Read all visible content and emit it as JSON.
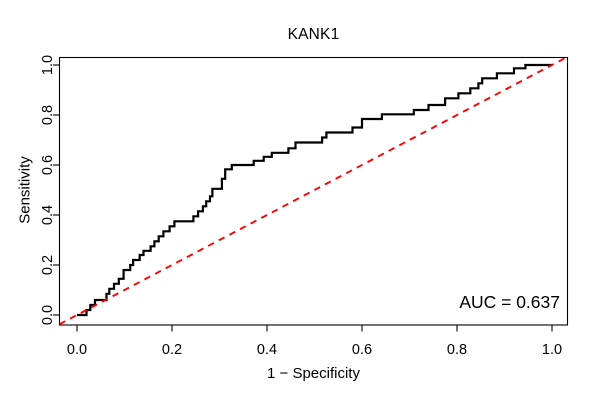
{
  "chart_data": {
    "type": "line",
    "subtype": "roc-step-curve",
    "title": "KANK1",
    "xlabel": "1 − Specificity",
    "ylabel": "Sensitivity",
    "annotation": "AUC = 0.637",
    "auc_value": 0.637,
    "xlim": [
      -0.04,
      1.04
    ],
    "ylim": [
      -0.04,
      1.04
    ],
    "x_ticks": [
      0.0,
      0.2,
      0.4,
      0.6,
      0.8,
      1.0
    ],
    "y_ticks": [
      0.0,
      0.2,
      0.4,
      0.6,
      0.8,
      1.0
    ],
    "grid": false,
    "legend_position": "none",
    "colors": {
      "roc_curve": "#000000",
      "diagonal": "#fe0000",
      "box": "#000000",
      "text": "#000000",
      "background": "#ffffff"
    },
    "series": [
      {
        "name": "ROC curve",
        "style": "solid-step",
        "color": "#000000",
        "points": [
          [
            0,
            0
          ],
          [
            0.02,
            0
          ],
          [
            0.02,
            0.02
          ],
          [
            0.028,
            0.02
          ],
          [
            0.028,
            0.04
          ],
          [
            0.038,
            0.04
          ],
          [
            0.038,
            0.06
          ],
          [
            0.062,
            0.06
          ],
          [
            0.062,
            0.085
          ],
          [
            0.068,
            0.085
          ],
          [
            0.068,
            0.105
          ],
          [
            0.078,
            0.105
          ],
          [
            0.078,
            0.125
          ],
          [
            0.088,
            0.125
          ],
          [
            0.088,
            0.145
          ],
          [
            0.098,
            0.145
          ],
          [
            0.098,
            0.18
          ],
          [
            0.112,
            0.18
          ],
          [
            0.112,
            0.2
          ],
          [
            0.118,
            0.2
          ],
          [
            0.118,
            0.22
          ],
          [
            0.132,
            0.22
          ],
          [
            0.132,
            0.24
          ],
          [
            0.14,
            0.24
          ],
          [
            0.14,
            0.257
          ],
          [
            0.155,
            0.257
          ],
          [
            0.155,
            0.275
          ],
          [
            0.163,
            0.275
          ],
          [
            0.163,
            0.295
          ],
          [
            0.172,
            0.295
          ],
          [
            0.172,
            0.315
          ],
          [
            0.182,
            0.315
          ],
          [
            0.182,
            0.335
          ],
          [
            0.195,
            0.335
          ],
          [
            0.195,
            0.355
          ],
          [
            0.205,
            0.355
          ],
          [
            0.205,
            0.375
          ],
          [
            0.245,
            0.375
          ],
          [
            0.245,
            0.395
          ],
          [
            0.255,
            0.395
          ],
          [
            0.255,
            0.415
          ],
          [
            0.265,
            0.415
          ],
          [
            0.265,
            0.435
          ],
          [
            0.272,
            0.435
          ],
          [
            0.272,
            0.455
          ],
          [
            0.28,
            0.455
          ],
          [
            0.28,
            0.475
          ],
          [
            0.285,
            0.475
          ],
          [
            0.285,
            0.505
          ],
          [
            0.305,
            0.505
          ],
          [
            0.305,
            0.545
          ],
          [
            0.312,
            0.545
          ],
          [
            0.312,
            0.583
          ],
          [
            0.326,
            0.583
          ],
          [
            0.326,
            0.6
          ],
          [
            0.372,
            0.6
          ],
          [
            0.372,
            0.617
          ],
          [
            0.393,
            0.617
          ],
          [
            0.393,
            0.633
          ],
          [
            0.41,
            0.633
          ],
          [
            0.41,
            0.649
          ],
          [
            0.445,
            0.649
          ],
          [
            0.445,
            0.667
          ],
          [
            0.46,
            0.667
          ],
          [
            0.46,
            0.69
          ],
          [
            0.516,
            0.69
          ],
          [
            0.516,
            0.71
          ],
          [
            0.525,
            0.71
          ],
          [
            0.525,
            0.73
          ],
          [
            0.58,
            0.73
          ],
          [
            0.58,
            0.75
          ],
          [
            0.6,
            0.75
          ],
          [
            0.6,
            0.784
          ],
          [
            0.642,
            0.784
          ],
          [
            0.642,
            0.803
          ],
          [
            0.709,
            0.803
          ],
          [
            0.709,
            0.82
          ],
          [
            0.74,
            0.82
          ],
          [
            0.74,
            0.84
          ],
          [
            0.775,
            0.84
          ],
          [
            0.775,
            0.867
          ],
          [
            0.803,
            0.867
          ],
          [
            0.803,
            0.887
          ],
          [
            0.828,
            0.887
          ],
          [
            0.828,
            0.907
          ],
          [
            0.845,
            0.907
          ],
          [
            0.845,
            0.927
          ],
          [
            0.853,
            0.927
          ],
          [
            0.853,
            0.947
          ],
          [
            0.884,
            0.947
          ],
          [
            0.884,
            0.967
          ],
          [
            0.92,
            0.967
          ],
          [
            0.92,
            0.987
          ],
          [
            0.944,
            0.987
          ],
          [
            0.944,
            1.0
          ],
          [
            1.0,
            1.0
          ]
        ]
      },
      {
        "name": "Chance reference line",
        "style": "dashed",
        "color": "#fe0000",
        "points": [
          [
            0,
            0
          ],
          [
            1,
            1
          ]
        ]
      }
    ]
  }
}
